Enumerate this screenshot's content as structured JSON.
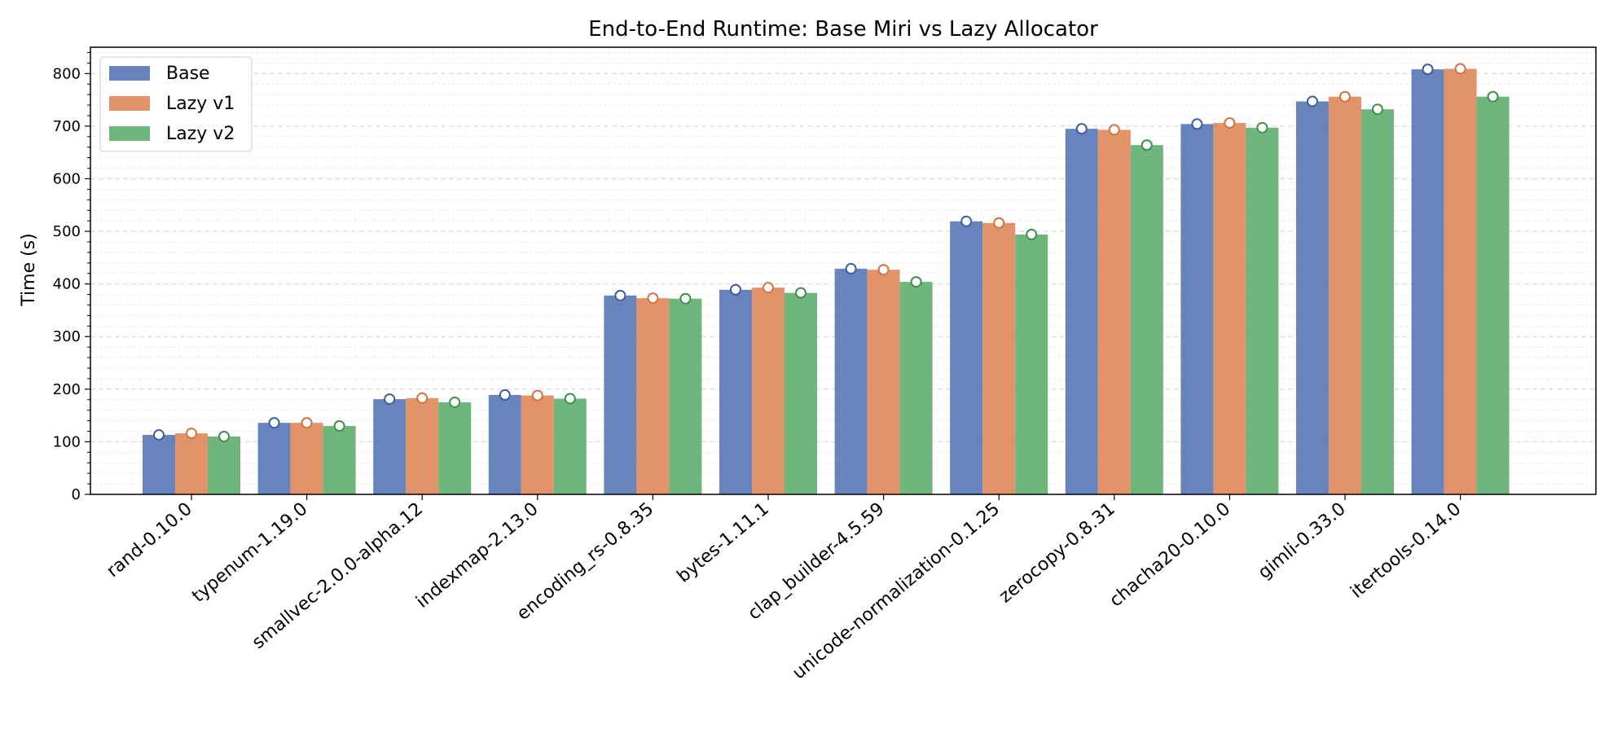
{
  "chart_data": {
    "type": "bar",
    "title": "End-to-End Runtime: Base Miri vs Lazy Allocator",
    "xlabel": "",
    "ylabel": "Time (s)",
    "ylim": [
      0,
      850
    ],
    "yticks": [
      0,
      100,
      200,
      300,
      400,
      500,
      600,
      700,
      800
    ],
    "grid": true,
    "legend_position": "top-left",
    "categories": [
      "rand-0.10.0",
      "typenum-1.19.0",
      "smallvec-2.0.0-alpha.12",
      "indexmap-2.13.0",
      "encoding_rs-0.8.35",
      "bytes-1.11.1",
      "clap_builder-4.5.59",
      "unicode-normalization-0.1.25",
      "zerocopy-0.8.31",
      "chacha20-0.10.0",
      "gimli-0.33.0",
      "itertools-0.14.0"
    ],
    "series": [
      {
        "name": "Base",
        "color": "#5677b5",
        "marker_color": "#3e5f9e",
        "values": [
          113,
          136,
          181,
          189,
          378,
          389,
          429,
          519,
          695,
          704,
          747,
          808
        ]
      },
      {
        "name": "Lazy v1",
        "color": "#e0875a",
        "marker_color": "#d4733f",
        "values": [
          116,
          136,
          183,
          188,
          373,
          393,
          427,
          516,
          693,
          706,
          756,
          809
        ]
      },
      {
        "name": "Lazy v2",
        "color": "#5fae6e",
        "marker_color": "#3f8f4f",
        "values": [
          110,
          130,
          175,
          182,
          372,
          383,
          404,
          494,
          664,
          697,
          732,
          756
        ]
      }
    ]
  }
}
